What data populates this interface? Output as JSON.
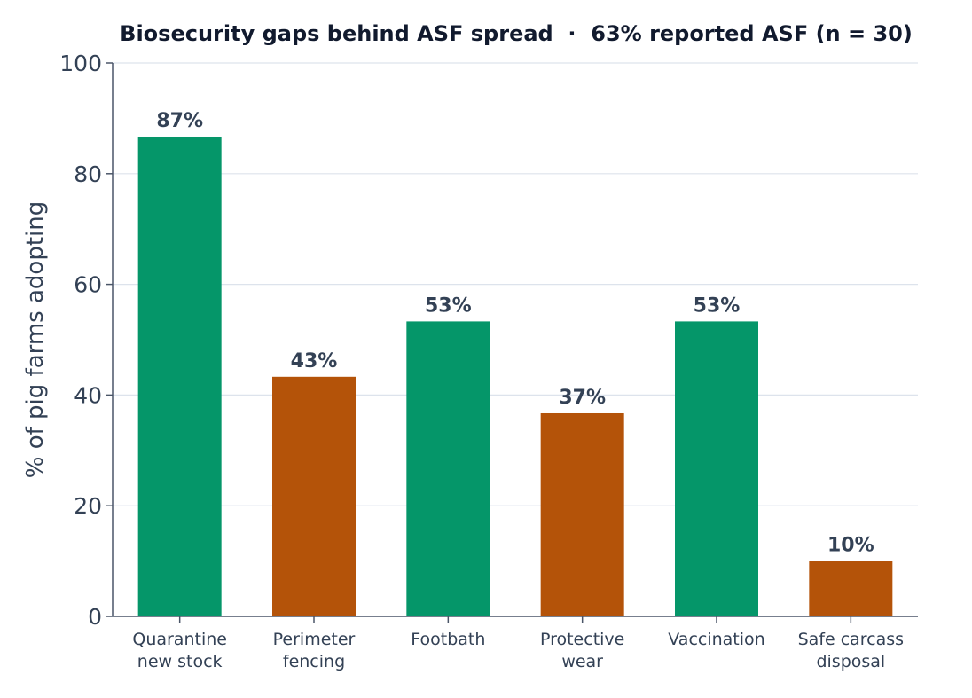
{
  "chart_data": {
    "type": "bar",
    "title": "Biosecurity gaps behind ASF spread  ·  63% reported ASF (n = 30)",
    "xlabel": "",
    "ylabel": "% of pig farms adopting",
    "ylim": [
      0,
      100
    ],
    "yticks": [
      0,
      20,
      40,
      60,
      80,
      100
    ],
    "grid": true,
    "categories": [
      [
        "Quarantine",
        "new stock"
      ],
      [
        "Perimeter",
        "fencing"
      ],
      [
        "Footbath"
      ],
      [
        "Protective",
        "wear"
      ],
      [
        "Vaccination"
      ],
      [
        "Safe carcass",
        "disposal"
      ]
    ],
    "values": [
      86.7,
      43.3,
      53.3,
      36.7,
      53.3,
      10.0
    ],
    "data_labels": [
      "87%",
      "43%",
      "53%",
      "37%",
      "53%",
      "10%"
    ],
    "colors": [
      "#059669",
      "#b45309",
      "#059669",
      "#b45309",
      "#059669",
      "#b45309"
    ]
  }
}
